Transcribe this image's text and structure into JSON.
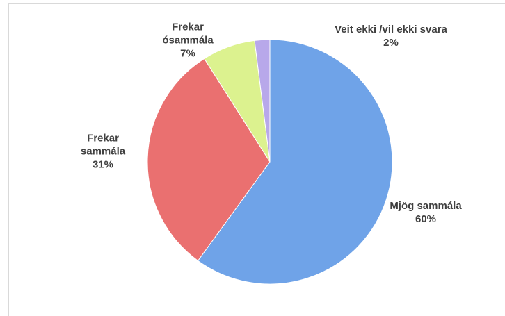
{
  "chart_data": {
    "type": "pie",
    "categories": [
      "Mjög sammála",
      "Frekar sammála",
      "Frekar ósammála",
      "Veit ekki /vil ekki svara"
    ],
    "values": [
      60,
      31,
      7,
      2
    ],
    "value_labels": [
      "60%",
      "31%",
      "7%",
      "2%"
    ],
    "colors": [
      "#6fa3e8",
      "#ea7070",
      "#dcf28f",
      "#b8a8ea"
    ]
  }
}
